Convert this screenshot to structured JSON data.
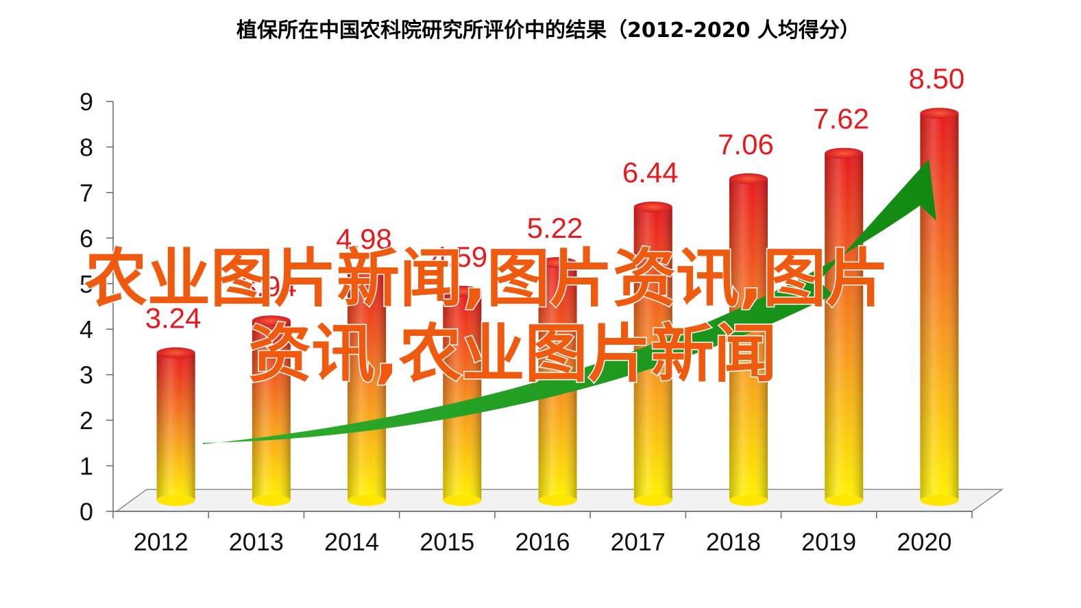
{
  "chart_data": {
    "type": "bar",
    "title": "植保所在中国农科院研究所评价中的结果（2012-2020  人均得分）",
    "categories": [
      "2012",
      "2013",
      "2014",
      "2015",
      "2016",
      "2017",
      "2018",
      "2019",
      "2020"
    ],
    "values": [
      3.24,
      3.94,
      4.98,
      4.59,
      5.22,
      6.44,
      7.06,
      7.62,
      8.5
    ],
    "data_labels": [
      "3.24",
      "3.94",
      "4.98",
      "4.59",
      "5.22",
      "6.44",
      "7.06",
      "7.62",
      "8.50"
    ],
    "ylim": [
      0,
      9
    ],
    "yticks": [
      "0",
      "1",
      "2",
      "3",
      "4",
      "5",
      "6",
      "7",
      "8",
      "9"
    ],
    "xlabel": "",
    "ylabel": "",
    "grid": false,
    "legend": "none",
    "style": "3d-cylinder",
    "colors": {
      "bar_top": "#e8191d",
      "bar_mid": "#f7941d",
      "bar_bottom": "#fff200",
      "label": "#e8191d",
      "trend_arrow": "#1c9a1c",
      "watermark": "#f05a0e"
    },
    "trend_arrow": "up",
    "watermark": {
      "line1": "农业图片新闻,图片资讯,图片",
      "line2": "资讯,农业图片新闻"
    }
  }
}
